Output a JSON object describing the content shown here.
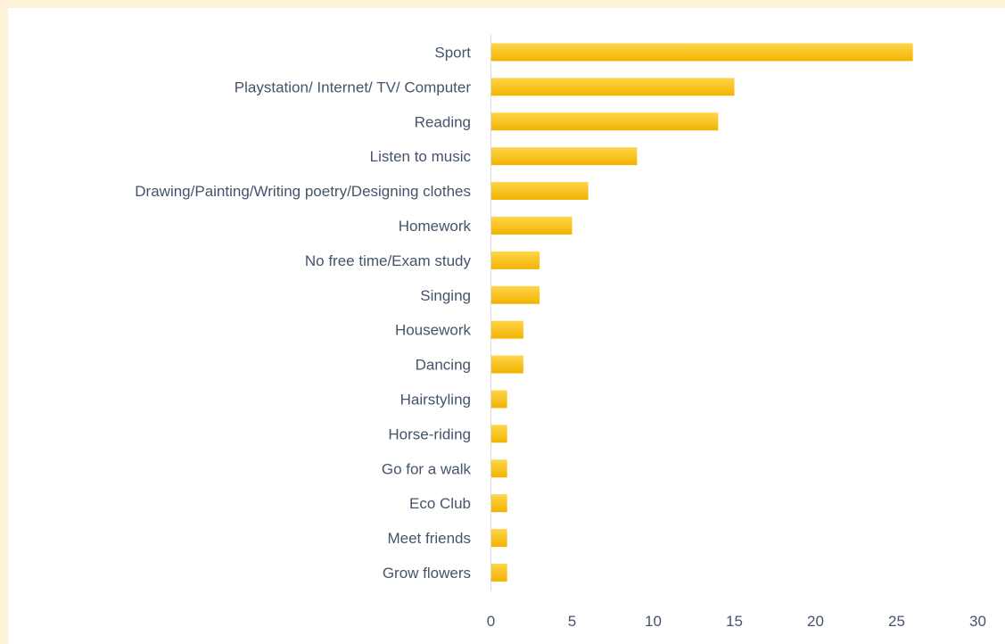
{
  "chart_data": {
    "type": "bar",
    "orientation": "horizontal",
    "categories": [
      "Sport",
      "Playstation/ Internet/ TV/ Computer",
      "Reading",
      "Listen to music",
      "Drawing/Painting/Writing poetry/Designing clothes",
      "Homework",
      "No free time/Exam study",
      "Singing",
      "Housework",
      "Dancing",
      "Hairstyling",
      "Horse-riding",
      "Go for a walk",
      "Eco Club",
      "Meet friends",
      "Grow flowers"
    ],
    "values": [
      26,
      15,
      14,
      9,
      6,
      5,
      3,
      3,
      2,
      2,
      1,
      1,
      1,
      1,
      1,
      1
    ],
    "xlim": [
      0,
      30
    ],
    "xticks": [
      "0",
      "5",
      "10",
      "15",
      "20",
      "25",
      "30"
    ],
    "title": "",
    "xlabel": "",
    "ylabel": "",
    "grid": false,
    "legend": "none",
    "bar_color_top": "#ffd54a",
    "bar_color_bottom": "#f2b300",
    "axis_color": "#d9d9d9",
    "text_color": "#44546a",
    "frame_color": "#fdf3d9"
  }
}
